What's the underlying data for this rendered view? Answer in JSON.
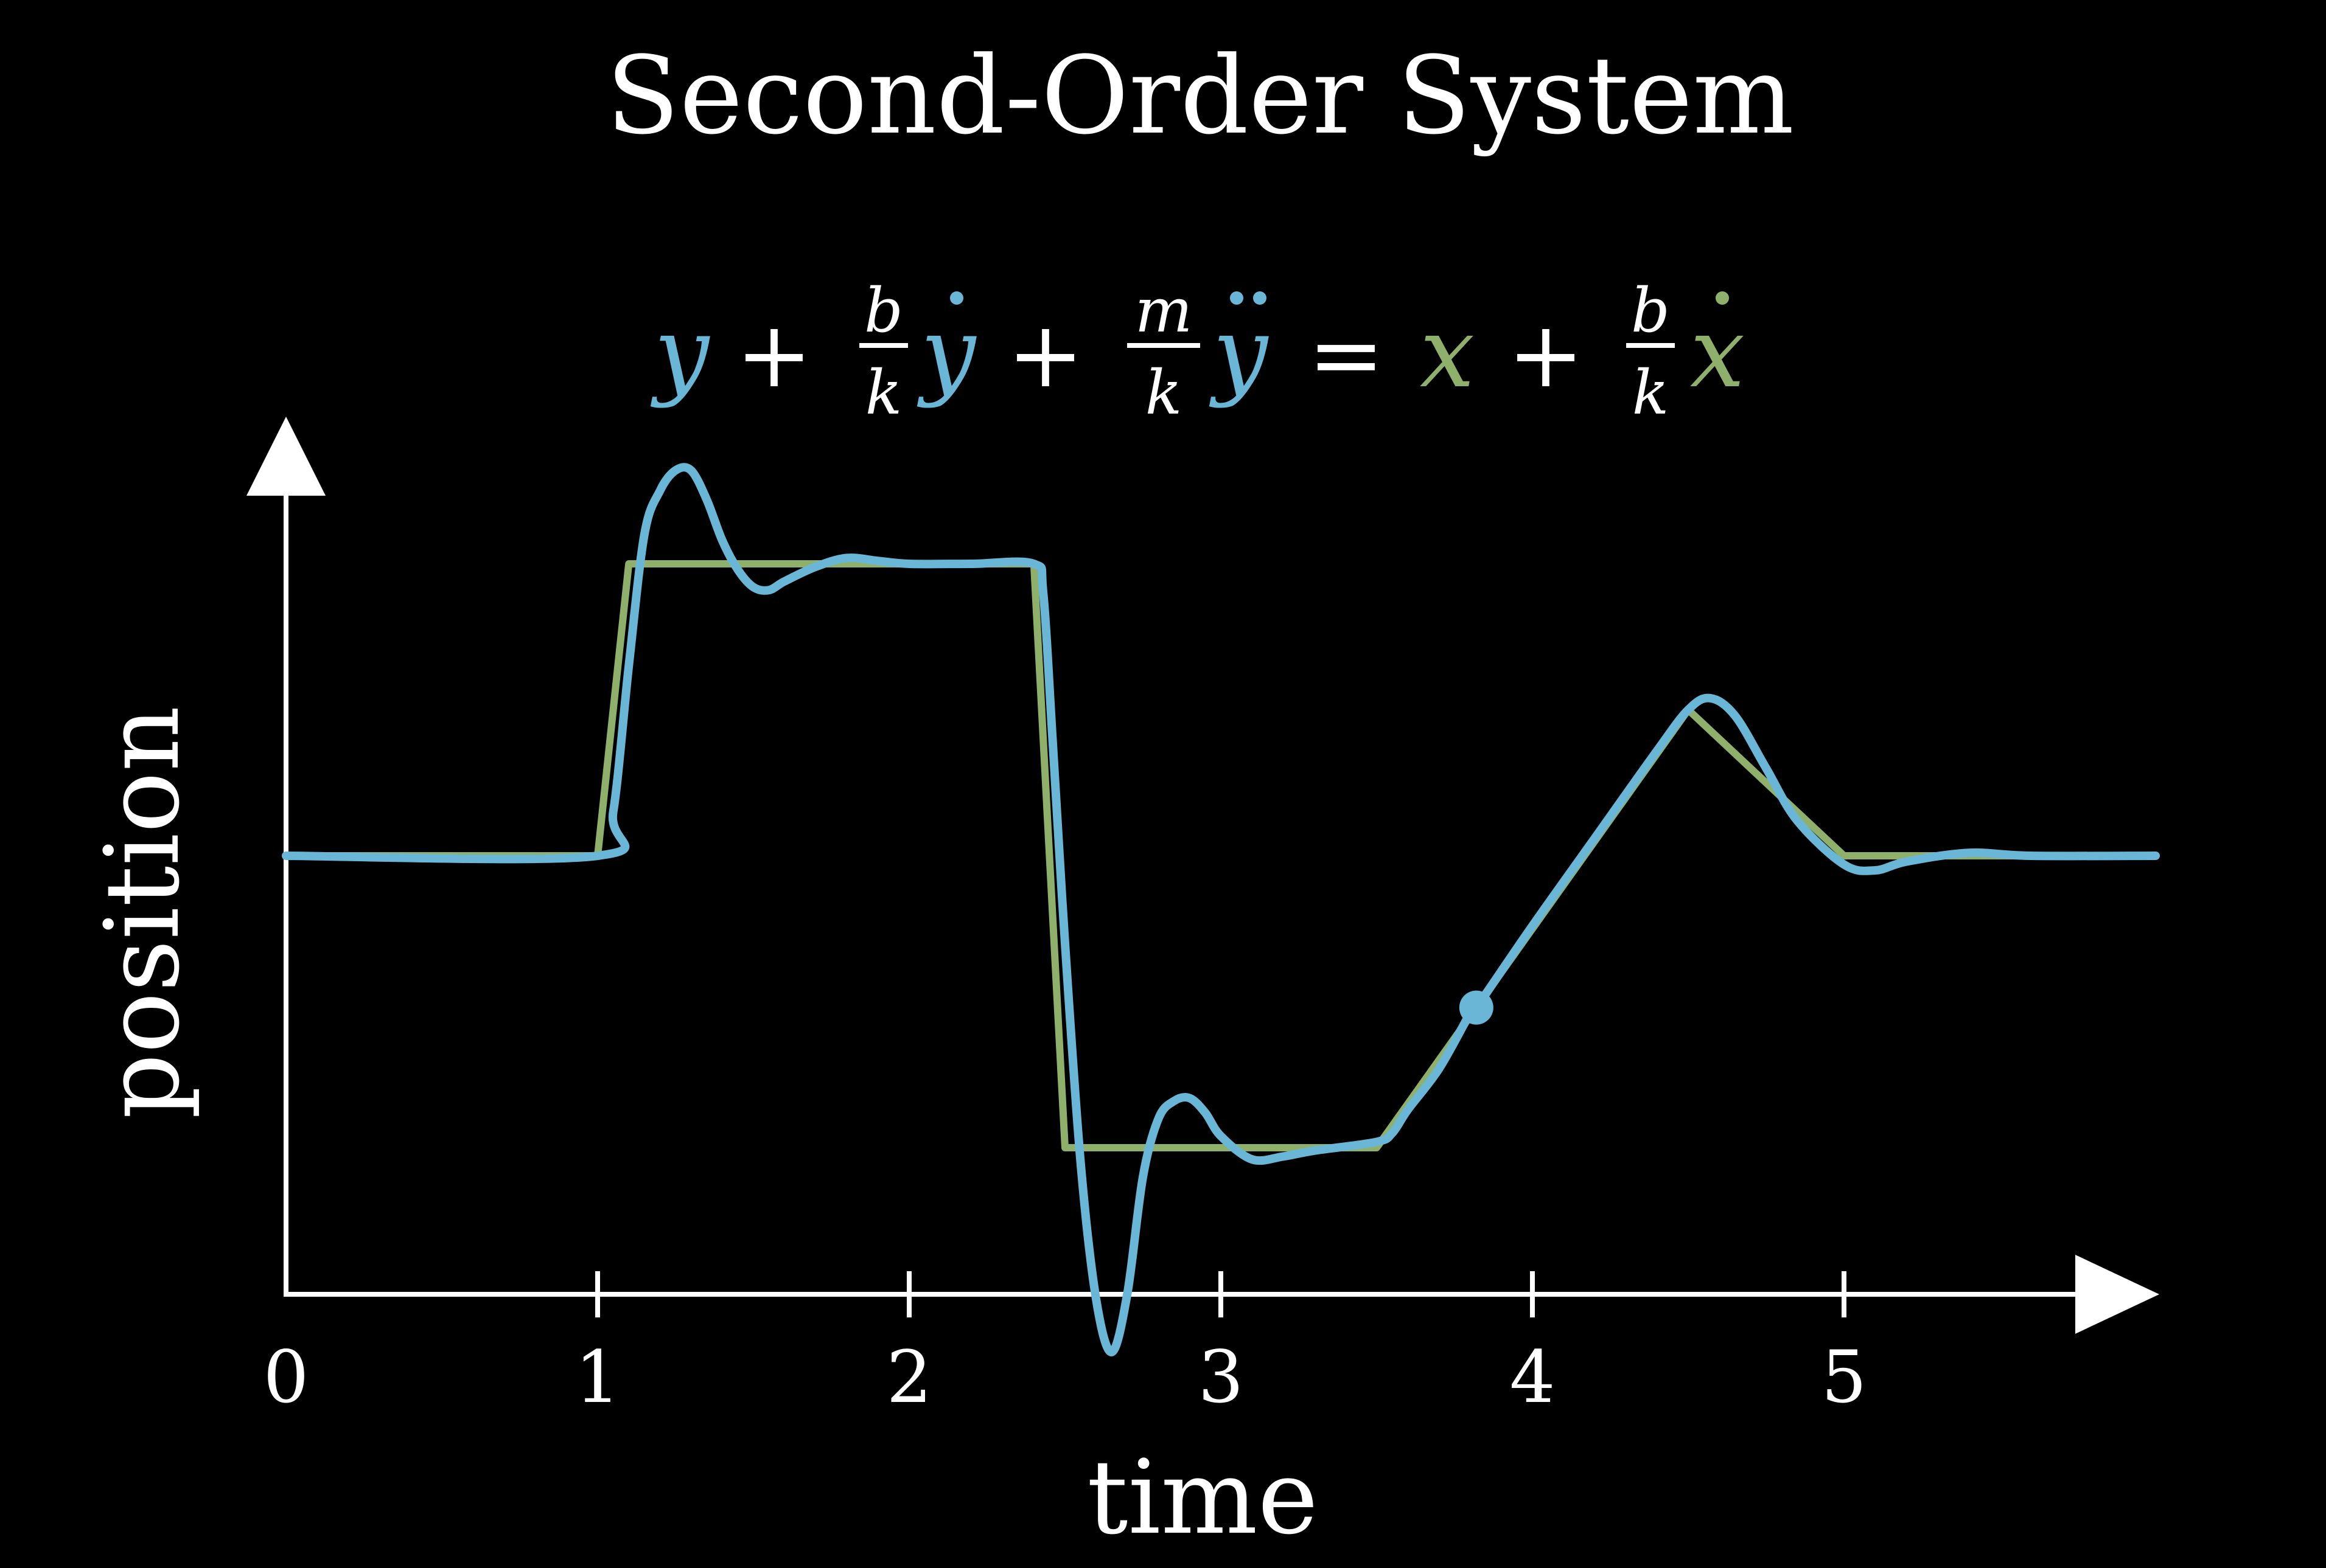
{
  "chart_data": {
    "type": "line",
    "title": "Second-Order System",
    "xlabel": "time",
    "ylabel": "position",
    "xlim": [
      0,
      6
    ],
    "ylim": [
      -1.5,
      1.5
    ],
    "grid": false,
    "x_ticks": [
      "0",
      "1",
      "2",
      "3",
      "4",
      "5"
    ],
    "equation": {
      "y": "y",
      "x": "x",
      "b": "b",
      "k": "k",
      "m": "m",
      "plus": "+",
      "equals": "="
    },
    "series": [
      {
        "color": "#8fb06a",
        "x": [
          0,
          1.0,
          1.1,
          2.4,
          2.5,
          3.5,
          4.5,
          5.0,
          6.0
        ],
        "y": [
          0,
          0,
          1,
          1,
          -1,
          -1,
          0.5,
          0,
          0
        ]
      },
      {
        "color": "#6ab6d6",
        "x": [
          0,
          1.0,
          1.05,
          1.1,
          1.15,
          1.2,
          1.25,
          1.3,
          1.35,
          1.4,
          1.45,
          1.5,
          1.55,
          1.6,
          1.7,
          1.8,
          1.9,
          2.0,
          2.2,
          2.4,
          2.43,
          2.46,
          2.5,
          2.55,
          2.6,
          2.65,
          2.7,
          2.75,
          2.8,
          2.85,
          2.9,
          2.95,
          3.0,
          3.1,
          3.2,
          3.3,
          3.5,
          3.55,
          3.6,
          3.7,
          3.8,
          3.82,
          4.0,
          4.2,
          4.4,
          4.5,
          4.57,
          4.65,
          4.75,
          4.85,
          5.0,
          5.1,
          5.2,
          5.4,
          5.6,
          6.0
        ],
        "y": [
          0,
          0,
          0.15,
          0.65,
          1.1,
          1.25,
          1.32,
          1.32,
          1.22,
          1.08,
          0.98,
          0.92,
          0.91,
          0.94,
          0.99,
          1.02,
          1.01,
          1.0,
          1.0,
          1.0,
          0.9,
          0.4,
          -0.3,
          -1.05,
          -1.52,
          -1.7,
          -1.5,
          -1.1,
          -0.9,
          -0.84,
          -0.83,
          -0.88,
          -0.96,
          -1.04,
          -1.03,
          -1.01,
          -0.98,
          -0.95,
          -0.87,
          -0.73,
          -0.54,
          -0.52,
          -0.24,
          0.06,
          0.36,
          0.5,
          0.54,
          0.48,
          0.3,
          0.12,
          -0.03,
          -0.05,
          -0.02,
          0.01,
          0.0,
          0.0
        ]
      }
    ],
    "marker": {
      "x": 3.82,
      "y": -0.52,
      "color": "#6ab6d6"
    }
  }
}
